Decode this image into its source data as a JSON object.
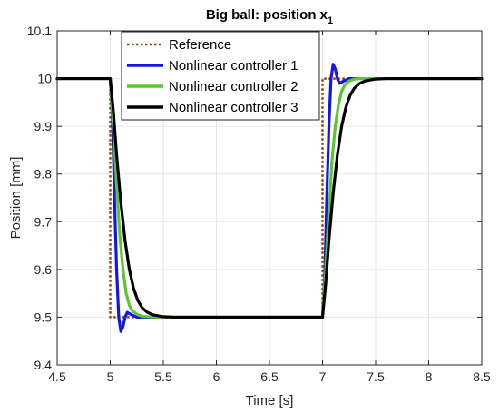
{
  "chart_data": {
    "type": "line",
    "title": "Big ball: position x",
    "title_subscript": "1",
    "xlabel": "Time [s]",
    "ylabel": "Position [mm]",
    "xlim": [
      4.5,
      8.5
    ],
    "ylim": [
      9.4,
      10.1
    ],
    "grid": true,
    "legend_position": "top-center",
    "x_ticks": [
      4.5,
      5,
      5.5,
      6,
      6.5,
      7,
      7.5,
      8,
      8.5
    ],
    "x_tick_labels": [
      "4.5",
      "5",
      "5.5",
      "6",
      "6.5",
      "7",
      "7.5",
      "8",
      "8.5"
    ],
    "y_ticks": [
      9.4,
      9.5,
      9.6,
      9.7,
      9.8,
      9.9,
      10,
      10.1
    ],
    "y_tick_labels": [
      "9.4",
      "9.5",
      "9.6",
      "9.7",
      "9.8",
      "9.9",
      "10",
      "10.1"
    ],
    "series": [
      {
        "name": "Reference",
        "color": "#8B4513",
        "style": "dotted",
        "x": [
          4.5,
          5.0,
          5.0,
          7.0,
          7.0,
          8.5
        ],
        "y": [
          10.0,
          10.0,
          9.5,
          9.5,
          10.0,
          10.0
        ]
      },
      {
        "name": "Nonlinear controller 1",
        "color": "#1515E6",
        "style": "solid",
        "x": [
          4.5,
          5.0,
          5.02,
          5.04,
          5.06,
          5.08,
          5.1,
          5.12,
          5.14,
          5.16,
          5.2,
          5.25,
          5.3,
          5.4,
          7.0,
          7.02,
          7.04,
          7.06,
          7.08,
          7.1,
          7.12,
          7.14,
          7.16,
          7.2,
          7.25,
          7.3,
          7.4,
          8.5
        ],
        "y": [
          10.0,
          10.0,
          9.92,
          9.75,
          9.6,
          9.5,
          9.47,
          9.48,
          9.5,
          9.51,
          9.505,
          9.5,
          9.5,
          9.5,
          9.5,
          9.58,
          9.75,
          9.9,
          10.0,
          10.03,
          10.02,
          10.0,
          9.99,
          9.995,
          10.0,
          10.0,
          10.0,
          10.0
        ]
      },
      {
        "name": "Nonlinear controller 2",
        "color": "#5AC72B",
        "style": "solid",
        "x": [
          4.5,
          5.0,
          5.03,
          5.06,
          5.09,
          5.12,
          5.15,
          5.18,
          5.21,
          5.25,
          5.3,
          5.35,
          5.45,
          5.6,
          7.0,
          7.03,
          7.06,
          7.09,
          7.12,
          7.15,
          7.18,
          7.21,
          7.25,
          7.3,
          7.35,
          7.45,
          7.6,
          8.5
        ],
        "y": [
          10.0,
          10.0,
          9.9,
          9.78,
          9.67,
          9.6,
          9.55,
          9.525,
          9.513,
          9.506,
          9.502,
          9.501,
          9.5,
          9.5,
          9.5,
          9.6,
          9.72,
          9.83,
          9.9,
          9.945,
          9.973,
          9.987,
          9.995,
          9.999,
          10.0,
          10.0,
          10.0,
          10.0
        ]
      },
      {
        "name": "Nonlinear controller 3",
        "color": "#000000",
        "style": "solid",
        "x": [
          4.5,
          5.0,
          5.03,
          5.06,
          5.1,
          5.14,
          5.18,
          5.22,
          5.26,
          5.3,
          5.35,
          5.4,
          5.5,
          5.6,
          5.7,
          7.0,
          7.03,
          7.06,
          7.1,
          7.14,
          7.18,
          7.22,
          7.26,
          7.3,
          7.35,
          7.4,
          7.5,
          7.6,
          7.7,
          8.5
        ],
        "y": [
          10.0,
          10.0,
          9.93,
          9.84,
          9.74,
          9.66,
          9.6,
          9.56,
          9.535,
          9.52,
          9.51,
          9.505,
          9.501,
          9.5,
          9.5,
          9.5,
          9.57,
          9.66,
          9.76,
          9.84,
          9.9,
          9.94,
          9.965,
          9.98,
          9.99,
          9.995,
          9.999,
          10.0,
          10.0,
          10.0
        ]
      }
    ]
  }
}
